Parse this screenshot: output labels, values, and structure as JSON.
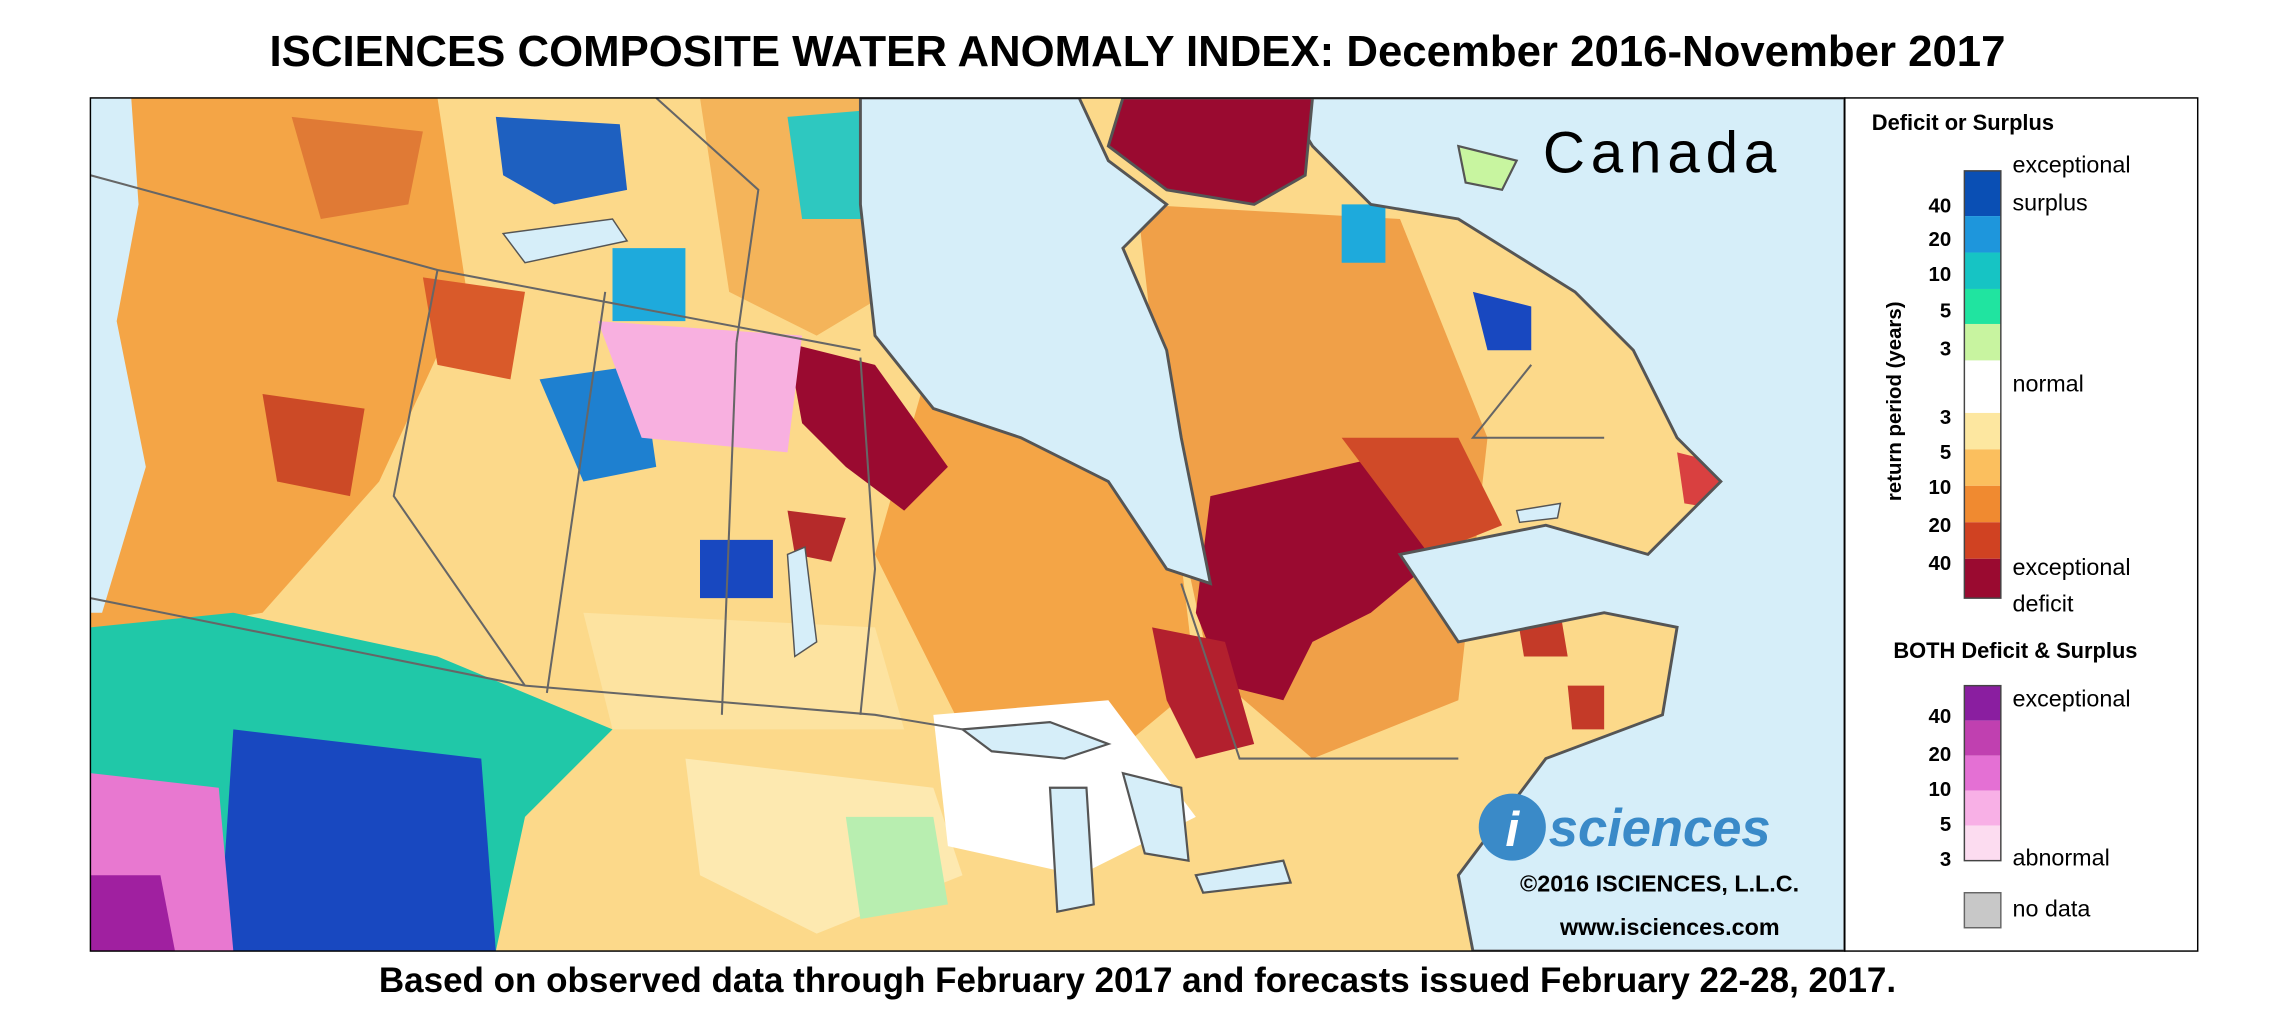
{
  "header": {
    "title": "ISCIENCES COMPOSITE WATER ANOMALY INDEX: December 2016-November 2017"
  },
  "map": {
    "region_label": "Canada",
    "logo": {
      "letter": "i",
      "word": "sciences"
    },
    "copyright": "©2016 ISCIENCES, L.L.C.",
    "url": "www.isciences.com"
  },
  "legend": {
    "deficit_surplus": {
      "title": "Deficit or Surplus",
      "axis_label": "return period (years)",
      "surplus_ticks": [
        40,
        20,
        10,
        5,
        3
      ],
      "deficit_ticks": [
        3,
        5,
        10,
        20,
        40
      ],
      "surplus_top": "exceptional",
      "surplus_bottom": "surplus",
      "normal": "normal",
      "deficit_top": "exceptional",
      "deficit_bottom": "deficit"
    },
    "both": {
      "title": "BOTH Deficit & Surplus",
      "ticks": [
        40,
        20,
        10,
        5,
        3
      ],
      "top": "exceptional",
      "bottom": "abnormal"
    },
    "no_data": "no data"
  },
  "footer": {
    "note": "Based on observed data through February 2017 and forecasts issued February 22-28, 2017."
  }
}
